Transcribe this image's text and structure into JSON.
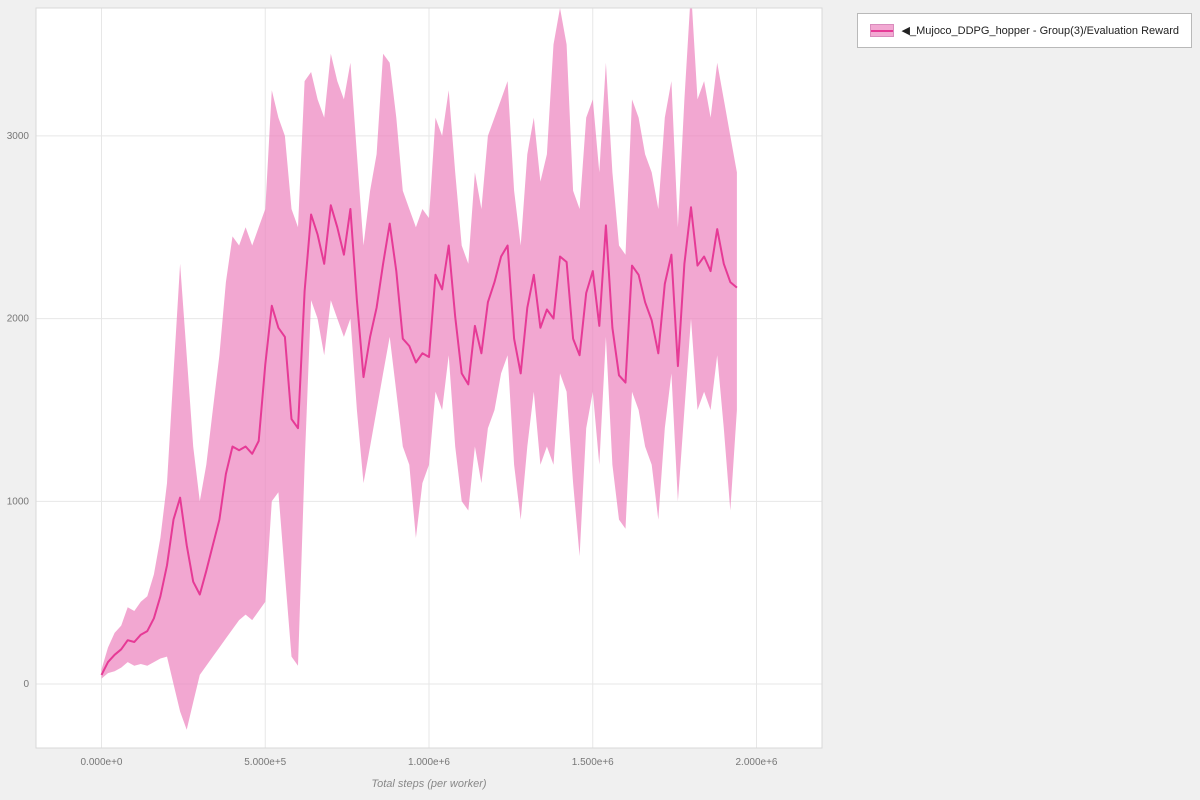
{
  "page": {
    "background": "#f0f0f0"
  },
  "legend": {
    "label": "◀_Mujoco_DDPG_hopper - Group(3)/Evaluation Reward",
    "band_color": "#f2a8d2",
    "line_color": "#e63a96"
  },
  "chart_data": {
    "type": "line",
    "title": "",
    "xlabel": "Total steps (per worker)",
    "ylabel": "",
    "xlim": [
      -200000,
      2200000
    ],
    "ylim": [
      -350,
      3700
    ],
    "grid": true,
    "legend_position": "top-right",
    "colors": {
      "line": "#e63a96",
      "band": "#ec82be",
      "band_opacity": 0.7,
      "grid": "#e7e7e7",
      "axis_text": "#777777",
      "plot_bg": "#ffffff",
      "plot_border": "#d9d9d9",
      "page_bg": "#f0f0f0"
    },
    "xticks": {
      "values": [
        0,
        500000,
        1000000,
        1500000,
        2000000
      ],
      "labels": [
        "0.000e+0",
        "5.000e+5",
        "1.000e+6",
        "1.500e+6",
        "2.000e+6"
      ]
    },
    "yticks": {
      "values": [
        0,
        1000,
        2000,
        3000
      ],
      "labels": [
        "0",
        "1000",
        "2000",
        "3000"
      ]
    },
    "series": [
      {
        "name": "◀_Mujoco_DDPG_hopper - Group(3)/Evaluation Reward",
        "type": "line_with_band",
        "line_color": "#e63a96",
        "band_color": "#ec82be",
        "x": [
          0,
          20000,
          40000,
          60000,
          80000,
          100000,
          120000,
          140000,
          160000,
          180000,
          200000,
          220000,
          240000,
          260000,
          280000,
          300000,
          320000,
          340000,
          360000,
          380000,
          400000,
          420000,
          440000,
          460000,
          480000,
          500000,
          520000,
          540000,
          560000,
          580000,
          600000,
          620000,
          640000,
          660000,
          680000,
          700000,
          720000,
          740000,
          760000,
          780000,
          800000,
          820000,
          840000,
          860000,
          880000,
          900000,
          920000,
          940000,
          960000,
          980000,
          1000000,
          1020000,
          1040000,
          1060000,
          1080000,
          1100000,
          1120000,
          1140000,
          1160000,
          1180000,
          1200000,
          1220000,
          1240000,
          1260000,
          1280000,
          1300000,
          1320000,
          1340000,
          1360000,
          1380000,
          1400000,
          1420000,
          1440000,
          1460000,
          1480000,
          1500000,
          1520000,
          1540000,
          1560000,
          1580000,
          1600000,
          1620000,
          1640000,
          1660000,
          1680000,
          1700000,
          1720000,
          1740000,
          1760000,
          1780000,
          1800000,
          1820000,
          1840000,
          1860000,
          1880000,
          1900000,
          1920000,
          1940000
        ],
        "mean": [
          50,
          120,
          160,
          190,
          240,
          230,
          270,
          290,
          360,
          480,
          650,
          900,
          1020,
          760,
          560,
          490,
          620,
          760,
          900,
          1150,
          1300,
          1280,
          1300,
          1260,
          1330,
          1750,
          2070,
          1950,
          1900,
          1450,
          1400,
          2150,
          2570,
          2460,
          2300,
          2620,
          2500,
          2350,
          2600,
          2100,
          1680,
          1900,
          2060,
          2300,
          2520,
          2260,
          1890,
          1850,
          1760,
          1810,
          1790,
          2240,
          2160,
          2400,
          2010,
          1700,
          1640,
          1960,
          1810,
          2090,
          2200,
          2340,
          2400,
          1890,
          1700,
          2060,
          2240,
          1950,
          2050,
          2000,
          2340,
          2310,
          1890,
          1800,
          2140,
          2260,
          1960,
          2510,
          1950,
          1690,
          1650,
          2290,
          2240,
          2090,
          1990,
          1810,
          2190,
          2350,
          1740,
          2300,
          2610,
          2290,
          2340,
          2260,
          2490,
          2300,
          2200,
          2170
        ],
        "lower": [
          30,
          60,
          70,
          90,
          120,
          100,
          110,
          100,
          120,
          140,
          150,
          0,
          -150,
          -250,
          -100,
          50,
          100,
          150,
          200,
          250,
          300,
          350,
          380,
          350,
          400,
          450,
          1000,
          1050,
          600,
          150,
          100,
          1200,
          2100,
          2000,
          1800,
          2100,
          2000,
          1900,
          2000,
          1500,
          1100,
          1300,
          1500,
          1700,
          1900,
          1600,
          1300,
          1200,
          800,
          1100,
          1200,
          1600,
          1500,
          1800,
          1300,
          1000,
          950,
          1300,
          1100,
          1400,
          1500,
          1700,
          1800,
          1200,
          900,
          1300,
          1600,
          1200,
          1300,
          1200,
          1700,
          1600,
          1100,
          700,
          1400,
          1600,
          1200,
          1900,
          1200,
          900,
          850,
          1600,
          1500,
          1300,
          1200,
          900,
          1400,
          1700,
          1000,
          1500,
          2000,
          1500,
          1600,
          1500,
          1800,
          1400,
          950,
          1500
        ],
        "upper": [
          80,
          200,
          280,
          320,
          420,
          400,
          450,
          480,
          600,
          800,
          1100,
          1700,
          2300,
          1800,
          1300,
          1000,
          1200,
          1500,
          1800,
          2200,
          2450,
          2400,
          2500,
          2400,
          2500,
          2600,
          3250,
          3100,
          3000,
          2600,
          2500,
          3300,
          3350,
          3200,
          3100,
          3450,
          3300,
          3200,
          3400,
          2900,
          2400,
          2700,
          2900,
          3450,
          3400,
          3100,
          2700,
          2600,
          2500,
          2600,
          2550,
          3100,
          3000,
          3250,
          2800,
          2400,
          2300,
          2800,
          2600,
          3000,
          3100,
          3200,
          3300,
          2700,
          2400,
          2900,
          3100,
          2750,
          2900,
          3500,
          3700,
          3500,
          2700,
          2600,
          3100,
          3200,
          2800,
          3400,
          2800,
          2400,
          2350,
          3200,
          3100,
          2900,
          2800,
          2600,
          3100,
          3300,
          2500,
          3200,
          3800,
          3200,
          3300,
          3100,
          3400,
          3200,
          3000,
          2800
        ]
      }
    ]
  }
}
